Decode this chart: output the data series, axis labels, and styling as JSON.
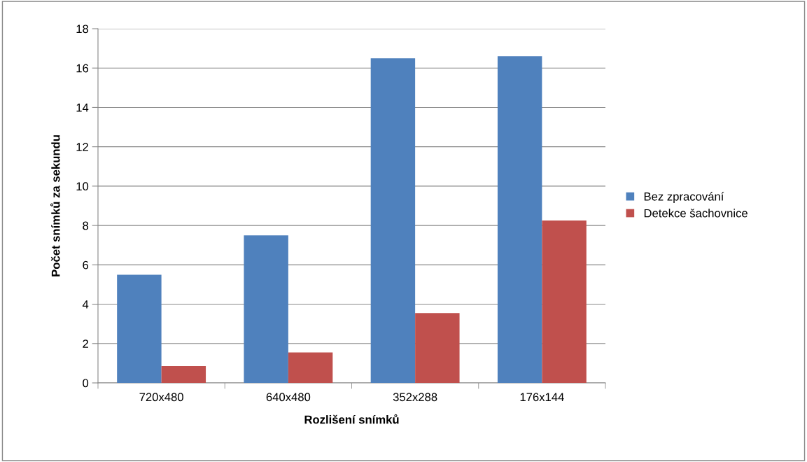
{
  "chart_data": {
    "type": "bar",
    "xlabel": "Rozlišení snímků",
    "ylabel": "Počet snímků za sekundu",
    "categories": [
      "720x480",
      "640x480",
      "352x288",
      "176x144"
    ],
    "series": [
      {
        "name": "Bez zpracování",
        "color": "#4f81bd",
        "values": [
          5.5,
          7.5,
          16.5,
          16.6
        ]
      },
      {
        "name": "Detekce šachovnice",
        "color": "#c0504d",
        "values": [
          0.85,
          1.55,
          3.55,
          8.25
        ]
      }
    ],
    "ylim": [
      0,
      18
    ],
    "yticks": [
      0,
      2,
      4,
      6,
      8,
      10,
      12,
      14,
      16,
      18
    ],
    "grid": "y",
    "legend": "right"
  }
}
